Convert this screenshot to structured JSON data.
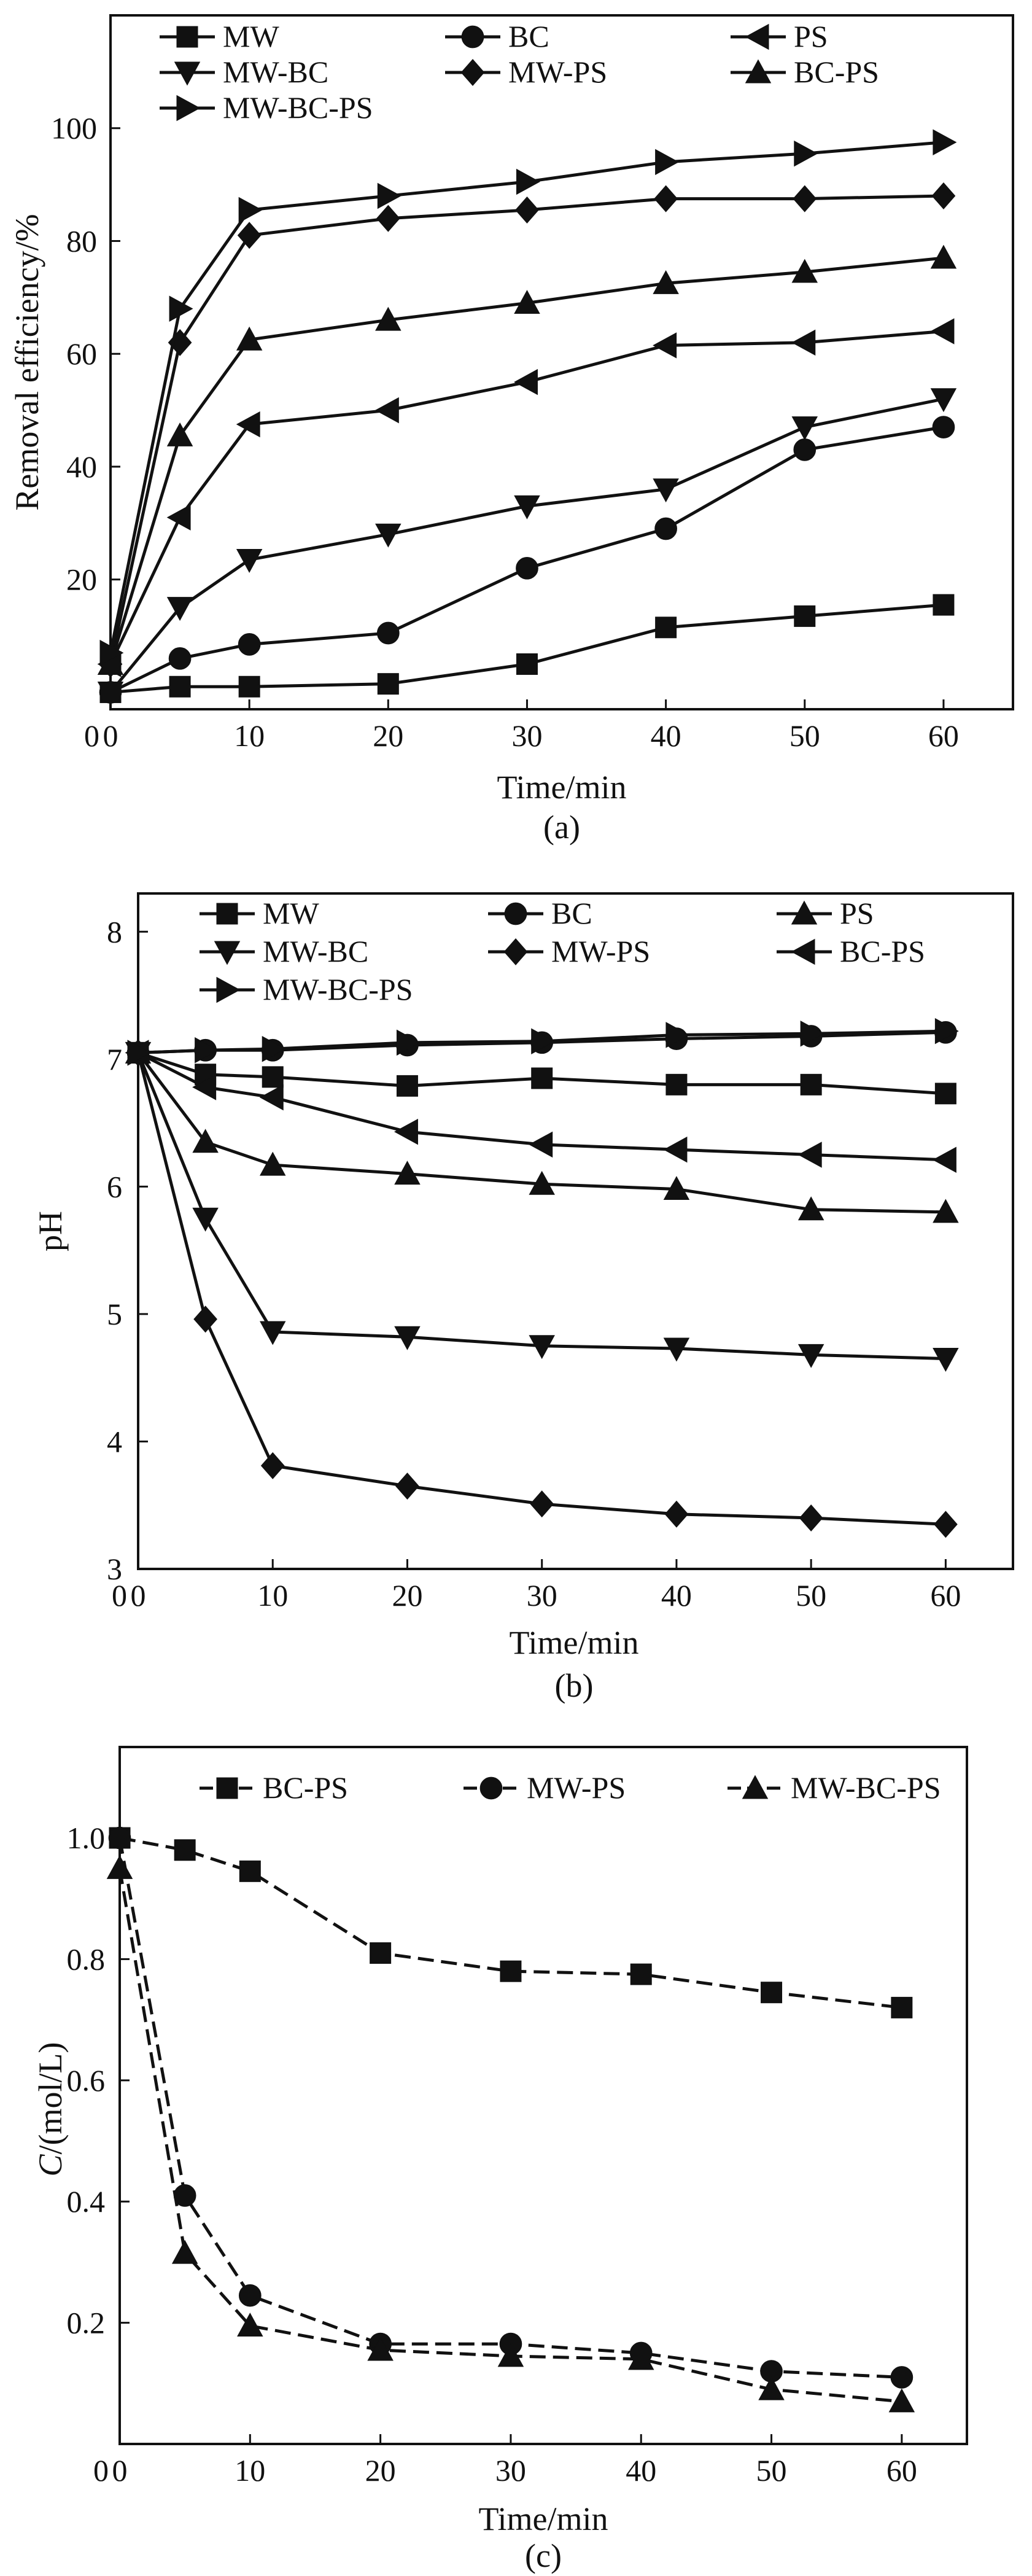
{
  "colors": {
    "ink": "#111111",
    "background": "#ffffff"
  },
  "chart_data": [
    {
      "type": "line",
      "panel": "(a)",
      "xlabel": "Time/min",
      "ylabel": "Removal efficiency/%",
      "xlim": [
        0,
        65
      ],
      "ylim": [
        -3,
        120
      ],
      "xticks": [
        "0",
        "10",
        "20",
        "30",
        "40",
        "50",
        "60"
      ],
      "xtick_values": [
        0,
        10,
        20,
        30,
        40,
        50,
        60
      ],
      "yticks": [
        "20",
        "40",
        "60",
        "80",
        "100"
      ],
      "ytick_values": [
        20,
        40,
        60,
        80,
        100
      ],
      "legend_columns": 3,
      "series": [
        {
          "name": "MW",
          "marker": "square",
          "dashed": false,
          "x": [
            0,
            5,
            10,
            20,
            30,
            40,
            50,
            60
          ],
          "y": [
            0,
            1,
            1,
            1.5,
            5,
            11.5,
            13.5,
            15.5
          ]
        },
        {
          "name": "BC",
          "marker": "circle",
          "dashed": false,
          "x": [
            0,
            5,
            10,
            20,
            30,
            40,
            50,
            60
          ],
          "y": [
            0,
            6,
            8.5,
            10.5,
            22,
            29,
            43,
            47
          ]
        },
        {
          "name": "PS",
          "marker": "triangle-left",
          "dashed": false,
          "x": [
            0,
            5,
            10,
            20,
            30,
            40,
            50,
            60
          ],
          "y": [
            5,
            31,
            47.5,
            50,
            55,
            61.5,
            62,
            64
          ]
        },
        {
          "name": "MW-BC",
          "marker": "triangle-down",
          "dashed": false,
          "x": [
            0,
            5,
            10,
            20,
            30,
            40,
            50,
            60
          ],
          "y": [
            0,
            15,
            23.5,
            28,
            33,
            36,
            47,
            52
          ]
        },
        {
          "name": "MW-PS",
          "marker": "diamond",
          "dashed": false,
          "x": [
            0,
            5,
            10,
            20,
            30,
            40,
            50,
            60
          ],
          "y": [
            5,
            62,
            81,
            84,
            85.5,
            87.5,
            87.5,
            88
          ]
        },
        {
          "name": "BC-PS",
          "marker": "triangle-up",
          "dashed": false,
          "x": [
            0,
            5,
            10,
            20,
            30,
            40,
            50,
            60
          ],
          "y": [
            5,
            45.5,
            62.5,
            66,
            69,
            72.5,
            74.5,
            77
          ]
        },
        {
          "name": "MW-BC-PS",
          "marker": "triangle-right",
          "dashed": false,
          "x": [
            0,
            5,
            10,
            20,
            30,
            40,
            50,
            60
          ],
          "y": [
            7,
            68,
            85.5,
            88,
            90.5,
            94,
            95.5,
            97.5
          ]
        }
      ]
    },
    {
      "type": "line",
      "panel": "(b)",
      "xlabel": "Time/min",
      "ylabel": "pH",
      "xlim": [
        0,
        65
      ],
      "ylim": [
        3,
        8.3
      ],
      "xticks": [
        "0",
        "10",
        "20",
        "30",
        "40",
        "50",
        "60"
      ],
      "xtick_values": [
        0,
        10,
        20,
        30,
        40,
        50,
        60
      ],
      "yticks": [
        "3",
        "4",
        "5",
        "6",
        "7",
        "8"
      ],
      "ytick_values": [
        3,
        4,
        5,
        6,
        7,
        8
      ],
      "legend_columns": 3,
      "series": [
        {
          "name": "MW",
          "marker": "square",
          "dashed": false,
          "x": [
            0,
            5,
            10,
            20,
            30,
            40,
            50,
            60
          ],
          "y": [
            7.05,
            6.88,
            6.86,
            6.79,
            6.85,
            6.8,
            6.8,
            6.73
          ]
        },
        {
          "name": "BC",
          "marker": "circle",
          "dashed": false,
          "x": [
            0,
            5,
            10,
            20,
            30,
            40,
            50,
            60
          ],
          "y": [
            7.05,
            7.07,
            7.07,
            7.11,
            7.13,
            7.16,
            7.18,
            7.21
          ]
        },
        {
          "name": "PS",
          "marker": "triangle-up",
          "dashed": false,
          "x": [
            0,
            5,
            10,
            20,
            30,
            40,
            50,
            60
          ],
          "y": [
            7.05,
            6.35,
            6.17,
            6.1,
            6.02,
            5.98,
            5.82,
            5.8
          ]
        },
        {
          "name": "MW-BC",
          "marker": "triangle-down",
          "dashed": false,
          "x": [
            0,
            5,
            10,
            20,
            30,
            40,
            50,
            60
          ],
          "y": [
            7.05,
            5.75,
            4.86,
            4.82,
            4.75,
            4.73,
            4.68,
            4.65
          ]
        },
        {
          "name": "MW-PS",
          "marker": "diamond",
          "dashed": false,
          "x": [
            0,
            5,
            10,
            20,
            30,
            40,
            50,
            60
          ],
          "y": [
            7.05,
            4.96,
            3.81,
            3.65,
            3.51,
            3.43,
            3.4,
            3.35
          ]
        },
        {
          "name": "BC-PS",
          "marker": "triangle-left",
          "dashed": false,
          "x": [
            0,
            5,
            10,
            20,
            30,
            40,
            50,
            60
          ],
          "y": [
            7.05,
            6.78,
            6.7,
            6.43,
            6.33,
            6.29,
            6.25,
            6.21
          ]
        },
        {
          "name": "MW-BC-PS",
          "marker": "triangle-right",
          "dashed": false,
          "x": [
            0,
            5,
            10,
            20,
            30,
            40,
            50,
            60
          ],
          "y": [
            7.05,
            7.07,
            7.08,
            7.13,
            7.14,
            7.19,
            7.2,
            7.22
          ]
        }
      ]
    },
    {
      "type": "line",
      "panel": "(c)",
      "xlabel": "Time/min",
      "ylabel": "C/(mol/L)",
      "ylabel_italic": "C",
      "ylabel_rest": "/(mol/L)",
      "xlim": [
        0,
        65
      ],
      "ylim": [
        0,
        1.15
      ],
      "xticks": [
        "0",
        "10",
        "20",
        "30",
        "40",
        "50",
        "60"
      ],
      "xtick_values": [
        0,
        10,
        20,
        30,
        40,
        50,
        60
      ],
      "yticks": [
        "0.2",
        "0.4",
        "0.6",
        "0.8",
        "1.0"
      ],
      "ytick_values": [
        0.2,
        0.4,
        0.6,
        0.8,
        1.0
      ],
      "legend_columns": 3,
      "series": [
        {
          "name": "BC-PS",
          "marker": "square",
          "dashed": true,
          "x": [
            0,
            5,
            10,
            20,
            30,
            40,
            50,
            60
          ],
          "y": [
            1.0,
            0.98,
            0.945,
            0.81,
            0.78,
            0.775,
            0.745,
            0.72
          ]
        },
        {
          "name": "MW-PS",
          "marker": "circle",
          "dashed": true,
          "x": [
            0,
            5,
            10,
            20,
            30,
            40,
            50,
            60
          ],
          "y": [
            1.0,
            0.41,
            0.245,
            0.165,
            0.165,
            0.15,
            0.12,
            0.11
          ]
        },
        {
          "name": "MW-BC-PS",
          "marker": "triangle-up",
          "dashed": true,
          "x": [
            0,
            5,
            10,
            20,
            30,
            40,
            50,
            60
          ],
          "y": [
            0.95,
            0.315,
            0.195,
            0.155,
            0.145,
            0.14,
            0.09,
            0.07
          ]
        }
      ]
    }
  ]
}
